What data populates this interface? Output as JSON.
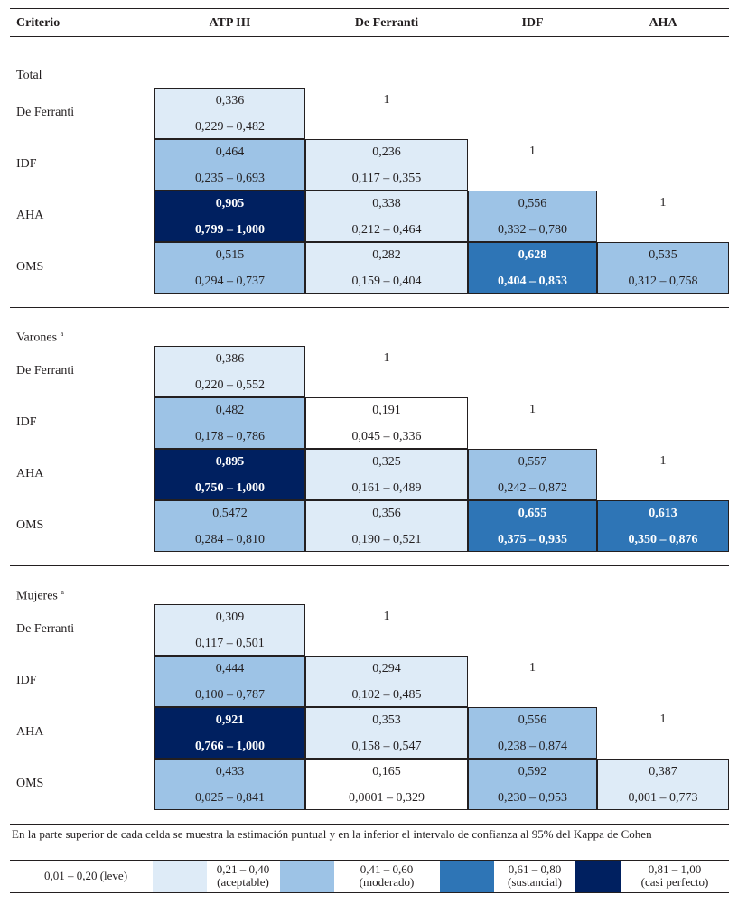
{
  "header": {
    "criterio": "Criterio",
    "cols": [
      "ATP III",
      "De Ferranti",
      "IDF",
      "AHA"
    ]
  },
  "colors": {
    "leve": "#ffffff",
    "aceptable": "#deebf7",
    "moderado": "#9dc3e6",
    "sustancial": "#2e75b6",
    "casi_perfecto": "#002060"
  },
  "sections": [
    {
      "title": "Total",
      "sup": "",
      "rows": [
        {
          "label": "De Ferranti",
          "cells": [
            {
              "v": "0,336",
              "ci": "0,229 – 0,482",
              "level": "aceptable"
            },
            {
              "v": "1",
              "ci": "",
              "level": "one"
            }
          ]
        },
        {
          "label": "IDF",
          "cells": [
            {
              "v": "0,464",
              "ci": "0,235 – 0,693",
              "level": "moderado"
            },
            {
              "v": "0,236",
              "ci": "0,117 – 0,355",
              "level": "aceptable"
            },
            {
              "v": "1",
              "ci": "",
              "level": "one"
            }
          ]
        },
        {
          "label": "AHA",
          "cells": [
            {
              "v": "0,905",
              "ci": "0,799 – 1,000",
              "level": "casi_perfecto"
            },
            {
              "v": "0,338",
              "ci": "0,212 – 0,464",
              "level": "aceptable"
            },
            {
              "v": "0,556",
              "ci": "0,332 – 0,780",
              "level": "moderado"
            },
            {
              "v": "1",
              "ci": "",
              "level": "one"
            }
          ]
        },
        {
          "label": "OMS",
          "cells": [
            {
              "v": "0,515",
              "ci": "0,294 – 0,737",
              "level": "moderado"
            },
            {
              "v": "0,282",
              "ci": "0,159 – 0,404",
              "level": "aceptable"
            },
            {
              "v": "0,628",
              "ci": "0,404 – 0,853",
              "level": "sustancial"
            },
            {
              "v": "0,535",
              "ci": "0,312 – 0,758",
              "level": "moderado"
            }
          ]
        }
      ]
    },
    {
      "title": "Varones",
      "sup": "a",
      "rows": [
        {
          "label": "De Ferranti",
          "cells": [
            {
              "v": "0,386",
              "ci": "0,220 – 0,552",
              "level": "aceptable"
            },
            {
              "v": "1",
              "ci": "",
              "level": "one"
            }
          ]
        },
        {
          "label": "IDF",
          "cells": [
            {
              "v": "0,482",
              "ci": "0,178 – 0,786",
              "level": "moderado"
            },
            {
              "v": "0,191",
              "ci": "0,045 – 0,336",
              "level": "leve"
            },
            {
              "v": "1",
              "ci": "",
              "level": "one"
            }
          ]
        },
        {
          "label": "AHA",
          "cells": [
            {
              "v": "0,895",
              "ci": "0,750 – 1,000",
              "level": "casi_perfecto"
            },
            {
              "v": "0,325",
              "ci": "0,161 – 0,489",
              "level": "aceptable"
            },
            {
              "v": "0,557",
              "ci": "0,242 – 0,872",
              "level": "moderado"
            },
            {
              "v": "1",
              "ci": "",
              "level": "one"
            }
          ]
        },
        {
          "label": "OMS",
          "cells": [
            {
              "v": "0,5472",
              "ci": "0,284 – 0,810",
              "level": "moderado"
            },
            {
              "v": "0,356",
              "ci": "0,190 – 0,521",
              "level": "aceptable"
            },
            {
              "v": "0,655",
              "ci": "0,375 – 0,935",
              "level": "sustancial"
            },
            {
              "v": "0,613",
              "ci": "0,350 – 0,876",
              "level": "sustancial"
            }
          ]
        }
      ]
    },
    {
      "title": "Mujeres",
      "sup": "a",
      "rows": [
        {
          "label": "De Ferranti",
          "cells": [
            {
              "v": "0,309",
              "ci": "0,117 – 0,501",
              "level": "aceptable"
            },
            {
              "v": "1",
              "ci": "",
              "level": "one"
            }
          ]
        },
        {
          "label": "IDF",
          "cells": [
            {
              "v": "0,444",
              "ci": "0,100 – 0,787",
              "level": "moderado"
            },
            {
              "v": "0,294",
              "ci": "0,102 – 0,485",
              "level": "aceptable"
            },
            {
              "v": "1",
              "ci": "",
              "level": "one"
            }
          ]
        },
        {
          "label": "AHA",
          "cells": [
            {
              "v": "0,921",
              "ci": "0,766 – 1,000",
              "level": "casi_perfecto"
            },
            {
              "v": "0,353",
              "ci": "0,158 – 0,547",
              "level": "aceptable"
            },
            {
              "v": "0,556",
              "ci": "0,238 – 0,874",
              "level": "moderado"
            },
            {
              "v": "1",
              "ci": "",
              "level": "one"
            }
          ]
        },
        {
          "label": "OMS",
          "cells": [
            {
              "v": "0,433",
              "ci": "0,025 – 0,841",
              "level": "moderado"
            },
            {
              "v": "0,165",
              "ci": "0,0001 – 0,329",
              "level": "leve"
            },
            {
              "v": "0,592",
              "ci": "0,230 – 0,953",
              "level": "moderado"
            },
            {
              "v": "0,387",
              "ci": "0,001 – 0,773",
              "level": "aceptable"
            }
          ]
        }
      ]
    }
  ],
  "footnote": "En la parte superior de cada celda se muestra la estimación puntual y en la inferior el intervalo de confianza al 95% del Kappa de Cohen",
  "legend": [
    {
      "range": "0,01 – 0,20",
      "desc": "(leve)",
      "level": "leve"
    },
    {
      "range": "0,21 – 0,40",
      "desc": "(aceptable)",
      "level": "aceptable"
    },
    {
      "range": "0,41 – 0,60",
      "desc": "(moderado)",
      "level": "moderado"
    },
    {
      "range": "0,61 – 0,80",
      "desc": "(sustancial)",
      "level": "sustancial"
    },
    {
      "range": "0,81 – 1,00",
      "desc": "(casi perfecto)",
      "level": "casi_perfecto"
    }
  ]
}
